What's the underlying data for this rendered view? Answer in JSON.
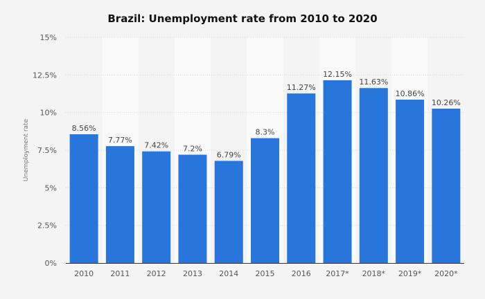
{
  "chart_data": {
    "type": "bar",
    "title": "Brazil: Unemployment rate from 2010 to 2020",
    "xlabel": "",
    "ylabel": "Unemployment rate",
    "categories": [
      "2010",
      "2011",
      "2012",
      "2013",
      "2014",
      "2015",
      "2016",
      "2017*",
      "2018*",
      "2019*",
      "2020*"
    ],
    "values": [
      8.56,
      7.77,
      7.42,
      7.2,
      6.79,
      8.3,
      11.27,
      12.15,
      11.63,
      10.86,
      10.26
    ],
    "data_labels": [
      "8.56%",
      "7.77%",
      "7.42%",
      "7.2%",
      "6.79%",
      "8.3%",
      "11.27%",
      "12.15%",
      "11.63%",
      "10.86%",
      "10.26%"
    ],
    "ylim": [
      0,
      15
    ],
    "yticks": [
      0,
      2.5,
      5,
      7.5,
      10,
      12.5,
      15
    ],
    "ytick_labels": [
      "0%",
      "2.5%",
      "5%",
      "7.5%",
      "10%",
      "12.5%",
      "15%"
    ],
    "grid": true,
    "bar_color": "#2875dc"
  }
}
